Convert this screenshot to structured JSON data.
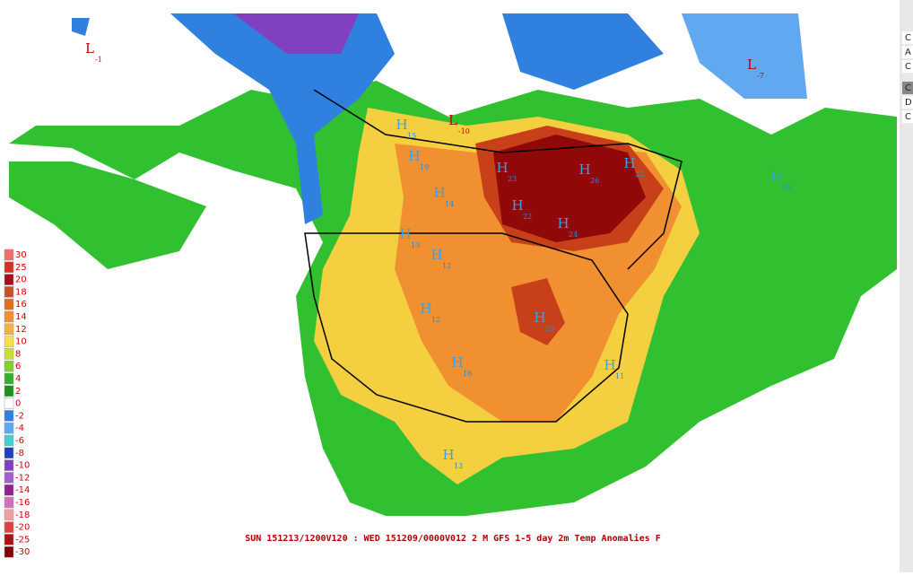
{
  "caption": "SUN 151213/1200V120 : WED 151209/0000V012  2 M GFS 1-5 day 2m Temp Anomalies F",
  "legend": [
    {
      "label": 30,
      "color": "#f46d6d"
    },
    {
      "label": 25,
      "color": "#d7301f"
    },
    {
      "label": 20,
      "color": "#a50f15"
    },
    {
      "label": 18,
      "color": "#c8502a"
    },
    {
      "label": 16,
      "color": "#e07020"
    },
    {
      "label": 14,
      "color": "#f09030"
    },
    {
      "label": 12,
      "color": "#f4b040"
    },
    {
      "label": 10,
      "color": "#f8e040"
    },
    {
      "label": 8,
      "color": "#c8e030"
    },
    {
      "label": 6,
      "color": "#80d030"
    },
    {
      "label": 4,
      "color": "#30b030"
    },
    {
      "label": 2,
      "color": "#209020"
    },
    {
      "label": 0,
      "color": "#ffffff"
    },
    {
      "label": -2,
      "color": "#3080e0"
    },
    {
      "label": -4,
      "color": "#60a8f0"
    },
    {
      "label": -6,
      "color": "#40d0d0"
    },
    {
      "label": -8,
      "color": "#2040c0"
    },
    {
      "label": -10,
      "color": "#8040c0"
    },
    {
      "label": -12,
      "color": "#a060d0"
    },
    {
      "label": -14,
      "color": "#902090"
    },
    {
      "label": -16,
      "color": "#d070c0"
    },
    {
      "label": -18,
      "color": "#f0a0a0"
    },
    {
      "label": -20,
      "color": "#e04040"
    },
    {
      "label": -25,
      "color": "#b01010"
    },
    {
      "label": -30,
      "color": "#800000"
    }
  ],
  "centers": [
    {
      "letter": "L",
      "value": "-1"
    },
    {
      "letter": "L",
      "value": "-7"
    },
    {
      "letter": "L",
      "value": "-10"
    },
    {
      "letter": "H",
      "value": "15"
    },
    {
      "letter": "H",
      "value": "19"
    },
    {
      "letter": "H",
      "value": "14"
    },
    {
      "letter": "H",
      "value": "23"
    },
    {
      "letter": "H",
      "value": "26"
    },
    {
      "letter": "H",
      "value": "22"
    },
    {
      "letter": "H",
      "value": "22"
    },
    {
      "letter": "H",
      "value": "24"
    },
    {
      "letter": "H",
      "value": "10"
    },
    {
      "letter": "H",
      "value": "13"
    },
    {
      "letter": "H",
      "value": "12"
    },
    {
      "letter": "H",
      "value": "12"
    },
    {
      "letter": "H",
      "value": "20"
    },
    {
      "letter": "H",
      "value": "16"
    },
    {
      "letter": "H",
      "value": "11"
    },
    {
      "letter": "H",
      "value": "13"
    }
  ],
  "side_tabs": [
    "C",
    "A",
    "C",
    "C",
    "D",
    "C"
  ]
}
